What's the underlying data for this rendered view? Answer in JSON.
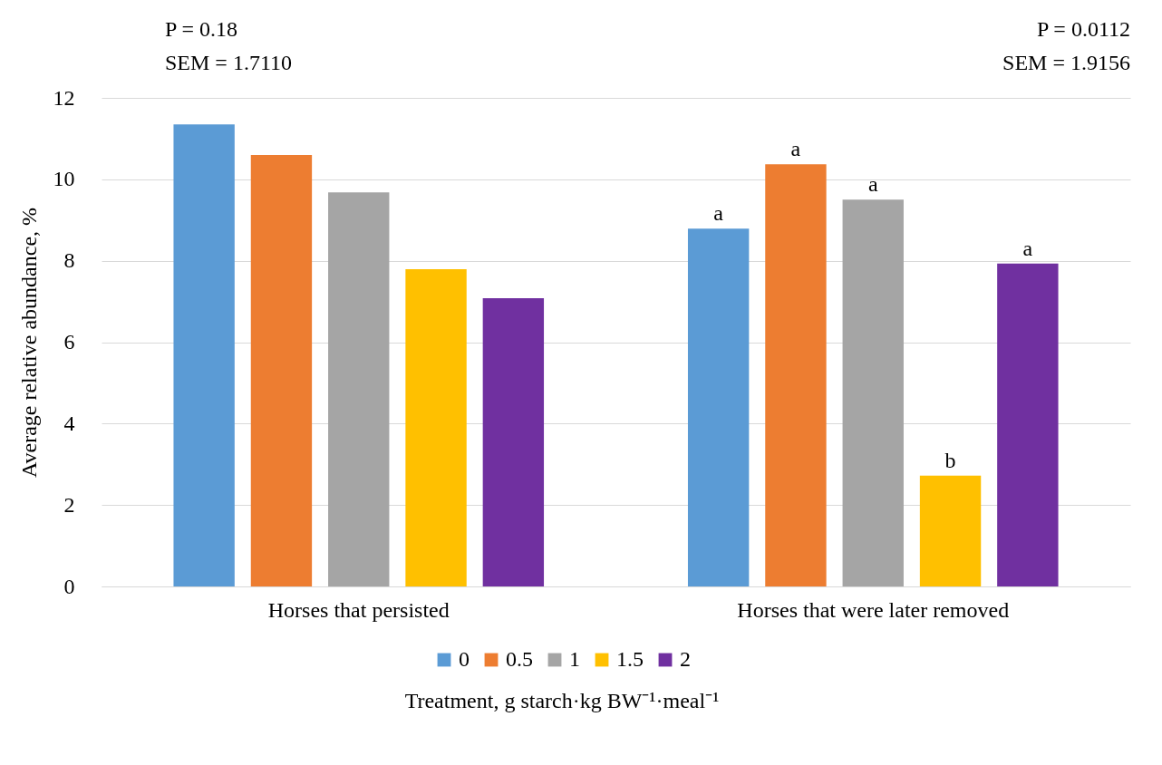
{
  "chart_data": {
    "type": "bar",
    "ylabel": "Average relative abundance, %",
    "legend_title": "Treatment, g starch·kg BW⁻¹·meal⁻¹",
    "categories": [
      "Horses that persisted",
      "Horses that were later removed"
    ],
    "series": [
      {
        "name": "0",
        "color": "#5b9bd5",
        "values": [
          11.35,
          8.79
        ],
        "value_labels": [
          null,
          "a"
        ]
      },
      {
        "name": "0.5",
        "color": "#ed7d31",
        "values": [
          10.6,
          10.37
        ],
        "value_labels": [
          null,
          "a"
        ]
      },
      {
        "name": "1",
        "color": "#a5a5a5",
        "values": [
          9.68,
          9.5
        ],
        "value_labels": [
          null,
          "a"
        ]
      },
      {
        "name": "1.5",
        "color": "#ffc000",
        "values": [
          7.79,
          2.72
        ],
        "value_labels": [
          null,
          "b"
        ]
      },
      {
        "name": "2",
        "color": "#7030a0",
        "values": [
          7.08,
          7.93
        ],
        "value_labels": [
          null,
          "a"
        ]
      }
    ],
    "ylim": [
      0,
      12
    ],
    "yticks": [
      0,
      2,
      4,
      6,
      8,
      10,
      12
    ],
    "grid": "y",
    "legend": "bottom",
    "annotations": [
      "P = 0.18",
      "SEM = 1.7110",
      "P = 0.0112",
      "SEM = 1.9156"
    ]
  }
}
